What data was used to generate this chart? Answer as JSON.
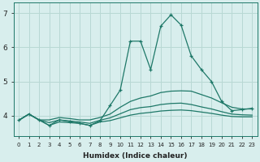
{
  "xlabel": "Humidex (Indice chaleur)",
  "xlim": [
    -0.5,
    23.5
  ],
  "ylim": [
    3.4,
    7.3
  ],
  "yticks": [
    4,
    5,
    6,
    7
  ],
  "xticks": [
    0,
    1,
    2,
    3,
    4,
    5,
    6,
    7,
    8,
    9,
    10,
    11,
    12,
    13,
    14,
    15,
    16,
    17,
    18,
    19,
    20,
    21,
    22,
    23
  ],
  "bg_color": "#d8eeed",
  "grid_color": "#b8d8d4",
  "line_color": "#1e7868",
  "lines": [
    {
      "x": [
        0,
        1,
        2,
        3,
        4,
        5,
        6,
        7,
        8,
        9,
        10,
        11,
        12,
        13,
        14,
        15,
        16,
        17,
        18,
        19,
        20,
        21,
        22,
        23
      ],
      "y": [
        3.87,
        4.05,
        3.88,
        3.72,
        3.88,
        3.83,
        3.78,
        3.72,
        3.85,
        4.3,
        4.75,
        6.18,
        6.18,
        5.35,
        6.62,
        6.95,
        6.65,
        5.75,
        5.35,
        5.0,
        4.42,
        4.15,
        4.18,
        4.22
      ],
      "marker": "+"
    },
    {
      "x": [
        0,
        1,
        2,
        3,
        4,
        5,
        6,
        7,
        8,
        9,
        10,
        11,
        12,
        13,
        14,
        15,
        16,
        17,
        18,
        19,
        20,
        21,
        22,
        23
      ],
      "y": [
        3.87,
        4.05,
        3.88,
        3.88,
        3.95,
        3.92,
        3.88,
        3.88,
        3.95,
        4.05,
        4.25,
        4.42,
        4.52,
        4.58,
        4.68,
        4.72,
        4.73,
        4.72,
        4.62,
        4.52,
        4.38,
        4.25,
        4.2,
        4.2
      ],
      "marker": null
    },
    {
      "x": [
        0,
        1,
        2,
        3,
        4,
        5,
        6,
        7,
        8,
        9,
        10,
        11,
        12,
        13,
        14,
        15,
        16,
        17,
        18,
        19,
        20,
        21,
        22,
        23
      ],
      "y": [
        3.87,
        4.05,
        3.88,
        3.8,
        3.88,
        3.85,
        3.82,
        3.78,
        3.87,
        3.94,
        4.06,
        4.18,
        4.24,
        4.27,
        4.33,
        4.36,
        4.37,
        4.33,
        4.26,
        4.2,
        4.12,
        4.05,
        4.03,
        4.02
      ],
      "marker": null
    },
    {
      "x": [
        0,
        1,
        2,
        3,
        4,
        5,
        6,
        7,
        8,
        9,
        10,
        11,
        12,
        13,
        14,
        15,
        16,
        17,
        18,
        19,
        20,
        21,
        22,
        23
      ],
      "y": [
        3.87,
        4.05,
        3.88,
        3.72,
        3.82,
        3.8,
        3.78,
        3.72,
        3.82,
        3.86,
        3.94,
        4.02,
        4.07,
        4.1,
        4.14,
        4.16,
        4.17,
        4.15,
        4.11,
        4.07,
        4.02,
        3.98,
        3.97,
        3.97
      ],
      "marker": null
    }
  ]
}
